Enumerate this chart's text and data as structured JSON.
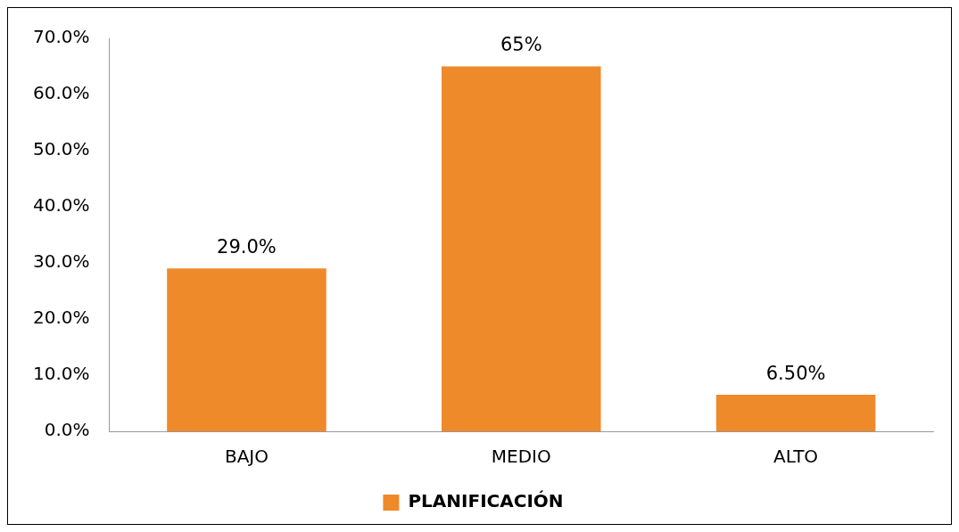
{
  "chart_data": {
    "type": "bar",
    "categories": [
      "BAJO",
      "MEDIO",
      "ALTO"
    ],
    "series": [
      {
        "name": "PLANIFICACIÓN",
        "color": "#ee8a2a",
        "values": [
          29.0,
          65,
          6.5
        ],
        "value_labels": [
          "29.0%",
          "65%",
          "6.50%"
        ]
      }
    ],
    "ylim": [
      0,
      70
    ],
    "yticks": [
      {
        "value": 0,
        "label": "0.0%"
      },
      {
        "value": 10,
        "label": "10.0%"
      },
      {
        "value": 20,
        "label": "20.0%"
      },
      {
        "value": 30,
        "label": "30.0%"
      },
      {
        "value": 40,
        "label": "40.0%"
      },
      {
        "value": 50,
        "label": "50.0%"
      },
      {
        "value": 60,
        "label": "60.0%"
      },
      {
        "value": 70,
        "label": "70.0%"
      }
    ],
    "grid": false,
    "legend": "bottom"
  }
}
